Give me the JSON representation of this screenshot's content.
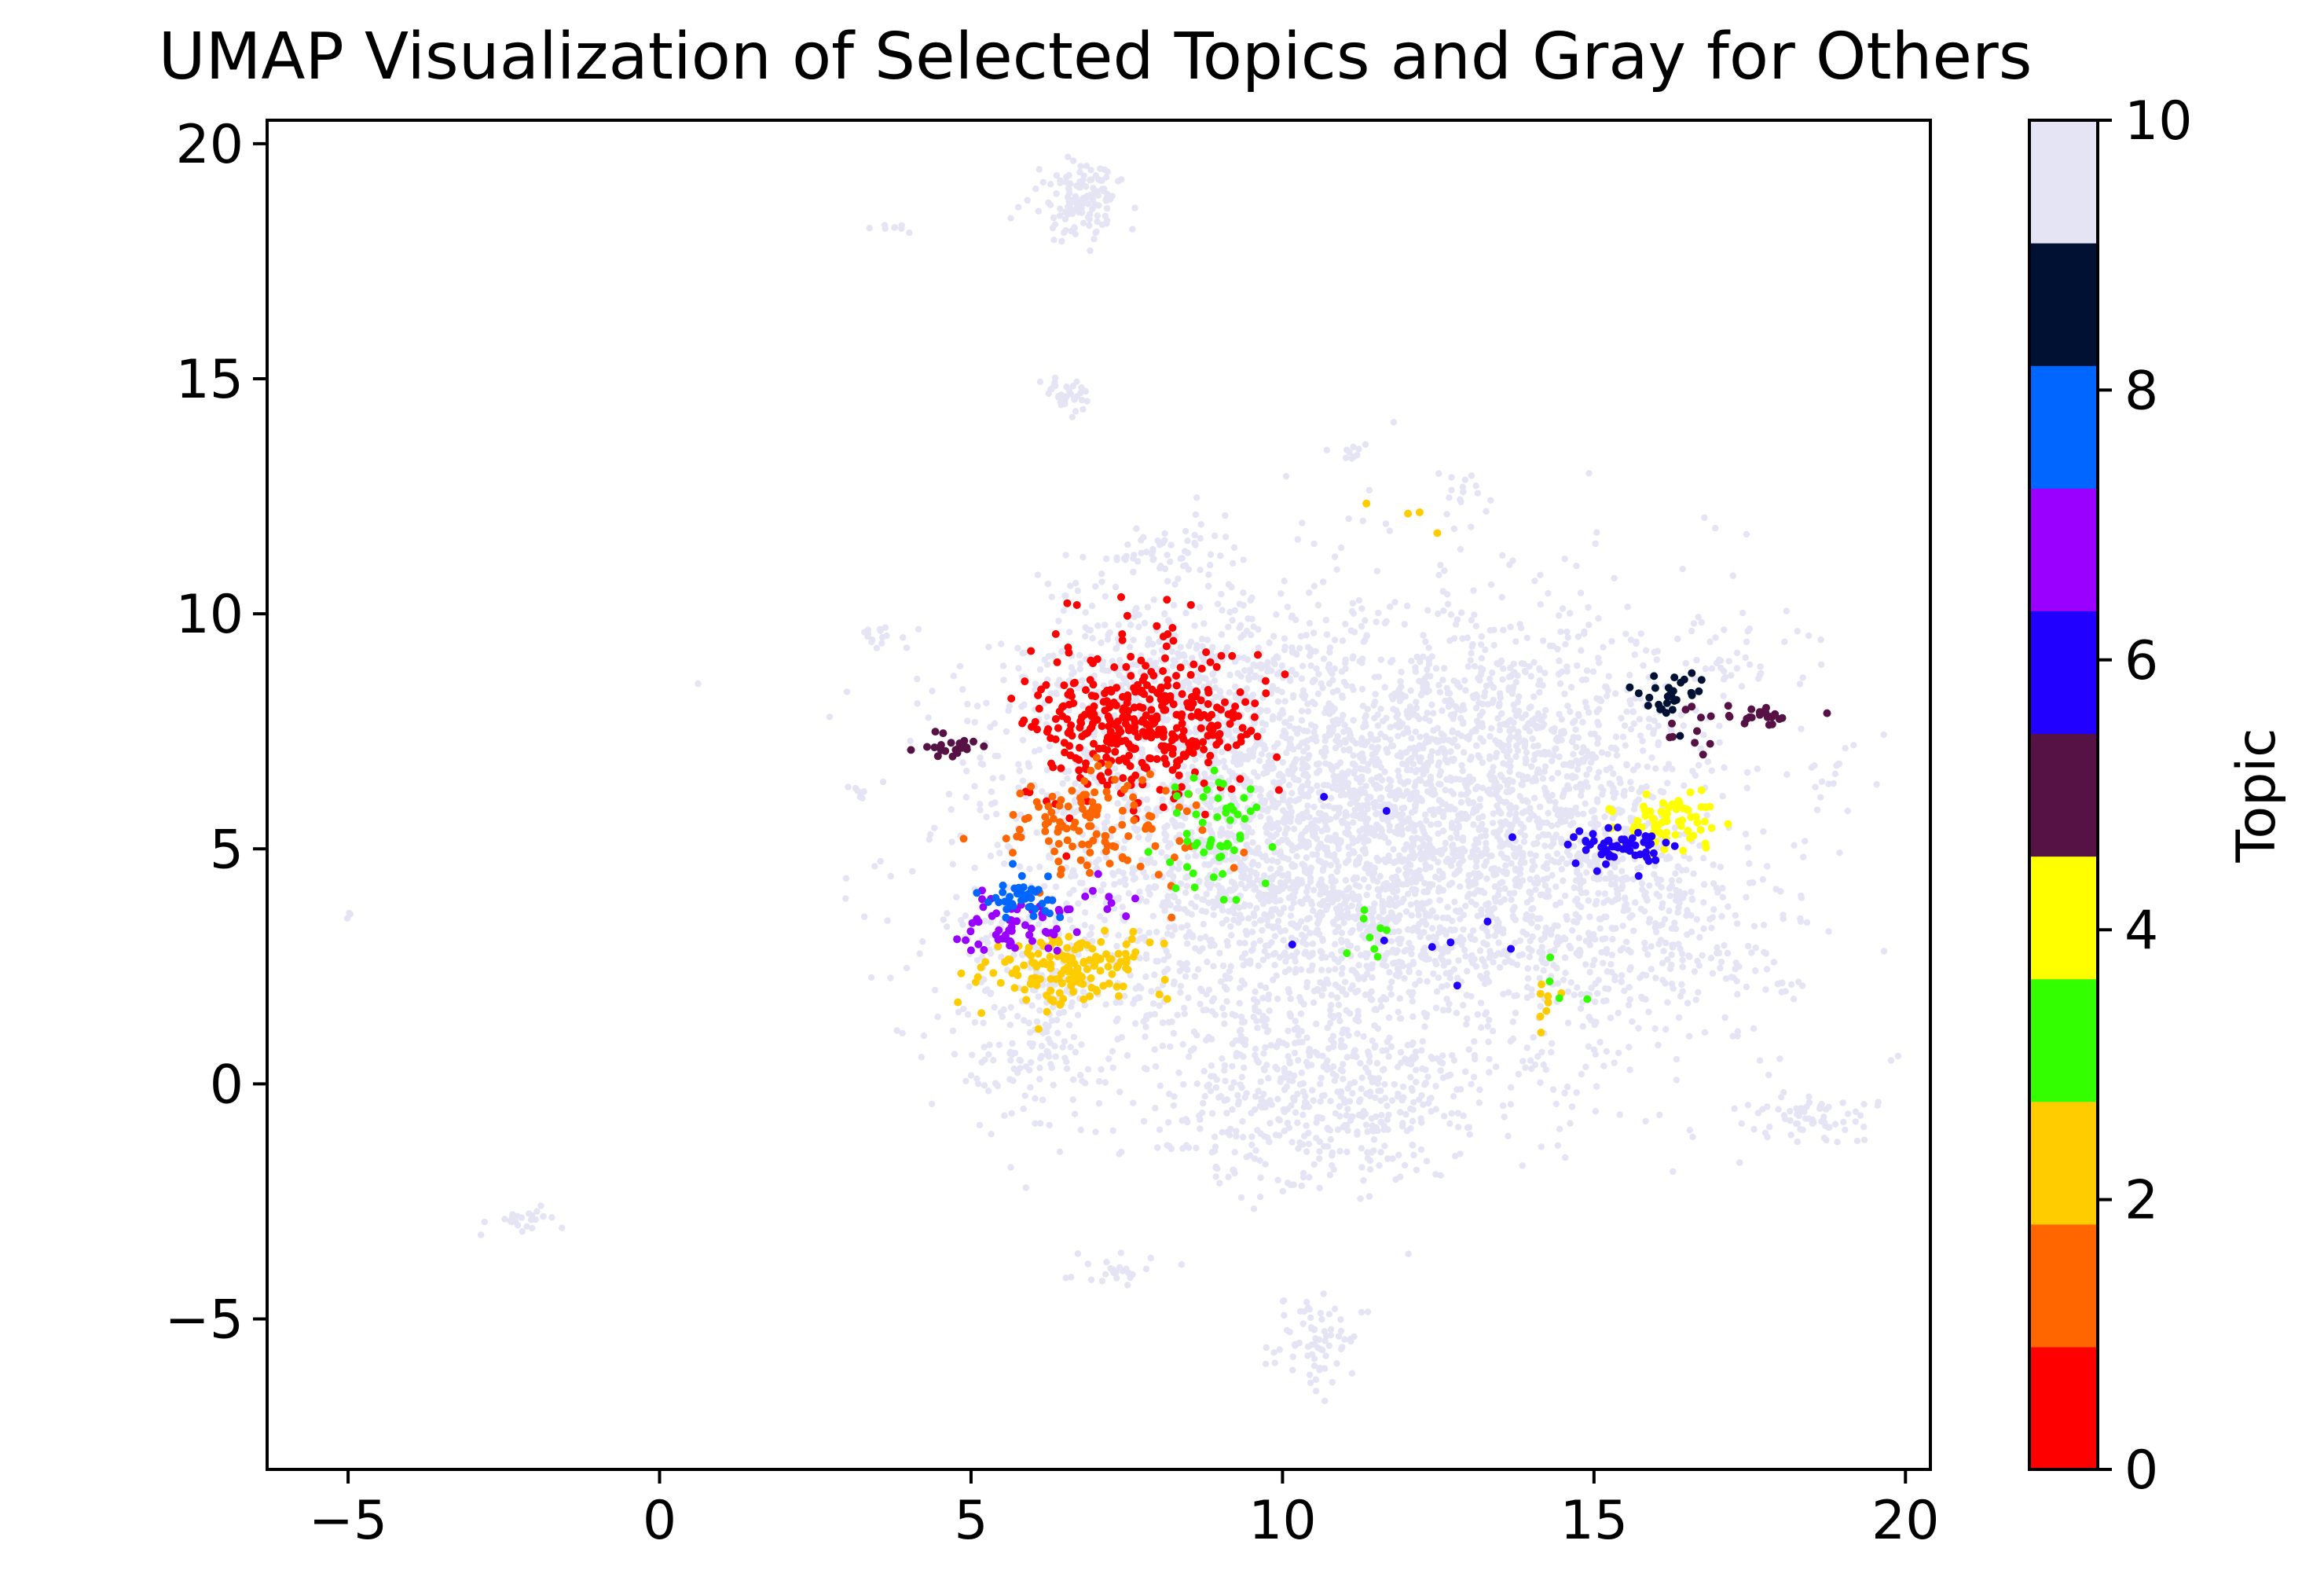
{
  "chart_data": {
    "type": "scatter",
    "title": "UMAP Visualization of Selected Topics and Gray for Others",
    "xlabel": "",
    "ylabel": "",
    "xlim": [
      -6.3,
      20.4
    ],
    "ylim": [
      -8.2,
      20.5
    ],
    "xticks": [
      -5,
      0,
      5,
      10,
      15,
      20
    ],
    "yticks": [
      -5,
      0,
      5,
      10,
      15,
      20
    ],
    "grid": false,
    "colorbar": {
      "label": "Topic",
      "vmin": 0,
      "vmax": 10,
      "ticks": [
        0,
        2,
        4,
        6,
        8,
        10
      ],
      "colors": [
        "#ff0000",
        "#ff6600",
        "#ffcc00",
        "#33ff00",
        "#ffff00",
        "#561145",
        "#2200ff",
        "#9900ff",
        "#0066ff",
        "#001133",
        "#e4e4f4"
      ]
    },
    "series": [
      {
        "topic": 0,
        "color": "#ff0000",
        "clusters": [
          {
            "cx": 7.5,
            "cy": 7.7,
            "sx": 0.85,
            "sy": 0.85,
            "n": 360
          },
          {
            "cx": 9.2,
            "cy": 7.6,
            "sx": 0.35,
            "sy": 0.6,
            "n": 25
          }
        ]
      },
      {
        "topic": 1,
        "color": "#ff6600",
        "clusters": [
          {
            "cx": 6.8,
            "cy": 5.6,
            "sx": 0.65,
            "sy": 0.55,
            "n": 110
          },
          {
            "cx": 8.4,
            "cy": 4.8,
            "sx": 0.5,
            "sy": 0.5,
            "n": 10
          }
        ]
      },
      {
        "topic": 2,
        "color": "#ffcc00",
        "clusters": [
          {
            "cx": 6.6,
            "cy": 2.4,
            "sx": 0.65,
            "sy": 0.4,
            "n": 150
          },
          {
            "cx": 14.2,
            "cy": 1.6,
            "sx": 0.25,
            "sy": 0.4,
            "n": 8
          },
          {
            "cx": 11.8,
            "cy": 12.0,
            "sx": 0.3,
            "sy": 0.3,
            "n": 4
          }
        ]
      },
      {
        "topic": 3,
        "color": "#33ff00",
        "clusters": [
          {
            "cx": 9.0,
            "cy": 5.4,
            "sx": 0.45,
            "sy": 0.7,
            "n": 55
          },
          {
            "cx": 11.4,
            "cy": 3.0,
            "sx": 0.15,
            "sy": 0.3,
            "n": 8
          },
          {
            "cx": 14.5,
            "cy": 2.0,
            "sx": 0.3,
            "sy": 0.3,
            "n": 4
          }
        ]
      },
      {
        "topic": 4,
        "color": "#ffff00",
        "clusters": [
          {
            "cx": 16.2,
            "cy": 5.6,
            "sx": 0.35,
            "sy": 0.3,
            "n": 70
          }
        ]
      },
      {
        "topic": 5,
        "color": "#561145",
        "clusters": [
          {
            "cx": 4.7,
            "cy": 7.2,
            "sx": 0.22,
            "sy": 0.15,
            "n": 22
          },
          {
            "cx": 17.5,
            "cy": 7.85,
            "sx": 0.4,
            "sy": 0.1,
            "n": 26
          },
          {
            "cx": 16.6,
            "cy": 7.5,
            "sx": 0.4,
            "sy": 0.3,
            "n": 8
          }
        ]
      },
      {
        "topic": 6,
        "color": "#2200ff",
        "clusters": [
          {
            "cx": 15.5,
            "cy": 5.0,
            "sx": 0.4,
            "sy": 0.25,
            "n": 55
          },
          {
            "cx": 12.5,
            "cy": 3.5,
            "sx": 1.2,
            "sy": 1.2,
            "n": 10
          }
        ]
      },
      {
        "topic": 7,
        "color": "#9900ff",
        "clusters": [
          {
            "cx": 5.6,
            "cy": 3.3,
            "sx": 0.45,
            "sy": 0.35,
            "n": 55
          },
          {
            "cx": 6.8,
            "cy": 4.0,
            "sx": 0.3,
            "sy": 0.3,
            "n": 10
          }
        ]
      },
      {
        "topic": 8,
        "color": "#0066ff",
        "clusters": [
          {
            "cx": 5.8,
            "cy": 4.0,
            "sx": 0.25,
            "sy": 0.22,
            "n": 40
          }
        ]
      },
      {
        "topic": 9,
        "color": "#001133",
        "clusters": [
          {
            "cx": 16.2,
            "cy": 8.3,
            "sx": 0.3,
            "sy": 0.2,
            "n": 28
          }
        ]
      },
      {
        "topic": 10,
        "color": "#e4e4f4",
        "label": "Others",
        "clusters": [
          {
            "cx": 11.0,
            "cy": 5.0,
            "sx": 2.6,
            "sy": 2.4,
            "n": 3800
          },
          {
            "cx": 8.2,
            "cy": 8.5,
            "sx": 1.3,
            "sy": 1.1,
            "n": 420
          },
          {
            "cx": 13.8,
            "cy": 7.2,
            "sx": 1.4,
            "sy": 1.6,
            "n": 500
          },
          {
            "cx": 10.5,
            "cy": -0.5,
            "sx": 1.4,
            "sy": 0.9,
            "n": 400
          },
          {
            "cx": 15.8,
            "cy": 3.5,
            "sx": 1.1,
            "sy": 1.4,
            "n": 280
          },
          {
            "cx": 6.0,
            "cy": 1.5,
            "sx": 0.8,
            "sy": 1.2,
            "n": 220
          },
          {
            "cx": 6.8,
            "cy": 18.8,
            "sx": 0.35,
            "sy": 0.4,
            "n": 130
          },
          {
            "cx": 6.5,
            "cy": 14.7,
            "sx": 0.2,
            "sy": 0.2,
            "n": 35
          },
          {
            "cx": 10.6,
            "cy": -5.5,
            "sx": 0.4,
            "sy": 0.5,
            "n": 70
          },
          {
            "cx": 7.3,
            "cy": -4.0,
            "sx": 0.35,
            "sy": 0.2,
            "n": 25
          },
          {
            "cx": 18.5,
            "cy": -0.7,
            "sx": 0.55,
            "sy": 0.3,
            "n": 65
          },
          {
            "cx": -2.2,
            "cy": -2.9,
            "sx": 0.25,
            "sy": 0.12,
            "n": 28
          },
          {
            "cx": 3.5,
            "cy": 9.5,
            "sx": 0.2,
            "sy": 0.1,
            "n": 14
          },
          {
            "cx": 3.2,
            "cy": 6.2,
            "sx": 0.2,
            "sy": 0.1,
            "n": 8
          },
          {
            "cx": 3.7,
            "cy": 18.2,
            "sx": 0.15,
            "sy": 0.05,
            "n": 8
          },
          {
            "cx": 18.8,
            "cy": 6.6,
            "sx": 0.3,
            "sy": 0.2,
            "n": 12
          },
          {
            "cx": 17.5,
            "cy": 9.2,
            "sx": 0.6,
            "sy": 0.5,
            "n": 30
          },
          {
            "cx": 17.9,
            "cy": 2.1,
            "sx": 0.25,
            "sy": 0.1,
            "n": 10
          },
          {
            "cx": 11.0,
            "cy": 13.4,
            "sx": 0.2,
            "sy": 0.15,
            "n": 10
          },
          {
            "cx": 12.8,
            "cy": 12.6,
            "sx": 0.25,
            "sy": 0.25,
            "n": 12
          },
          {
            "cx": -5.0,
            "cy": 3.6,
            "sx": 0.05,
            "sy": 0.05,
            "n": 3
          },
          {
            "cx": 8.0,
            "cy": 11.3,
            "sx": 0.6,
            "sy": 0.3,
            "n": 50
          }
        ]
      }
    ]
  }
}
